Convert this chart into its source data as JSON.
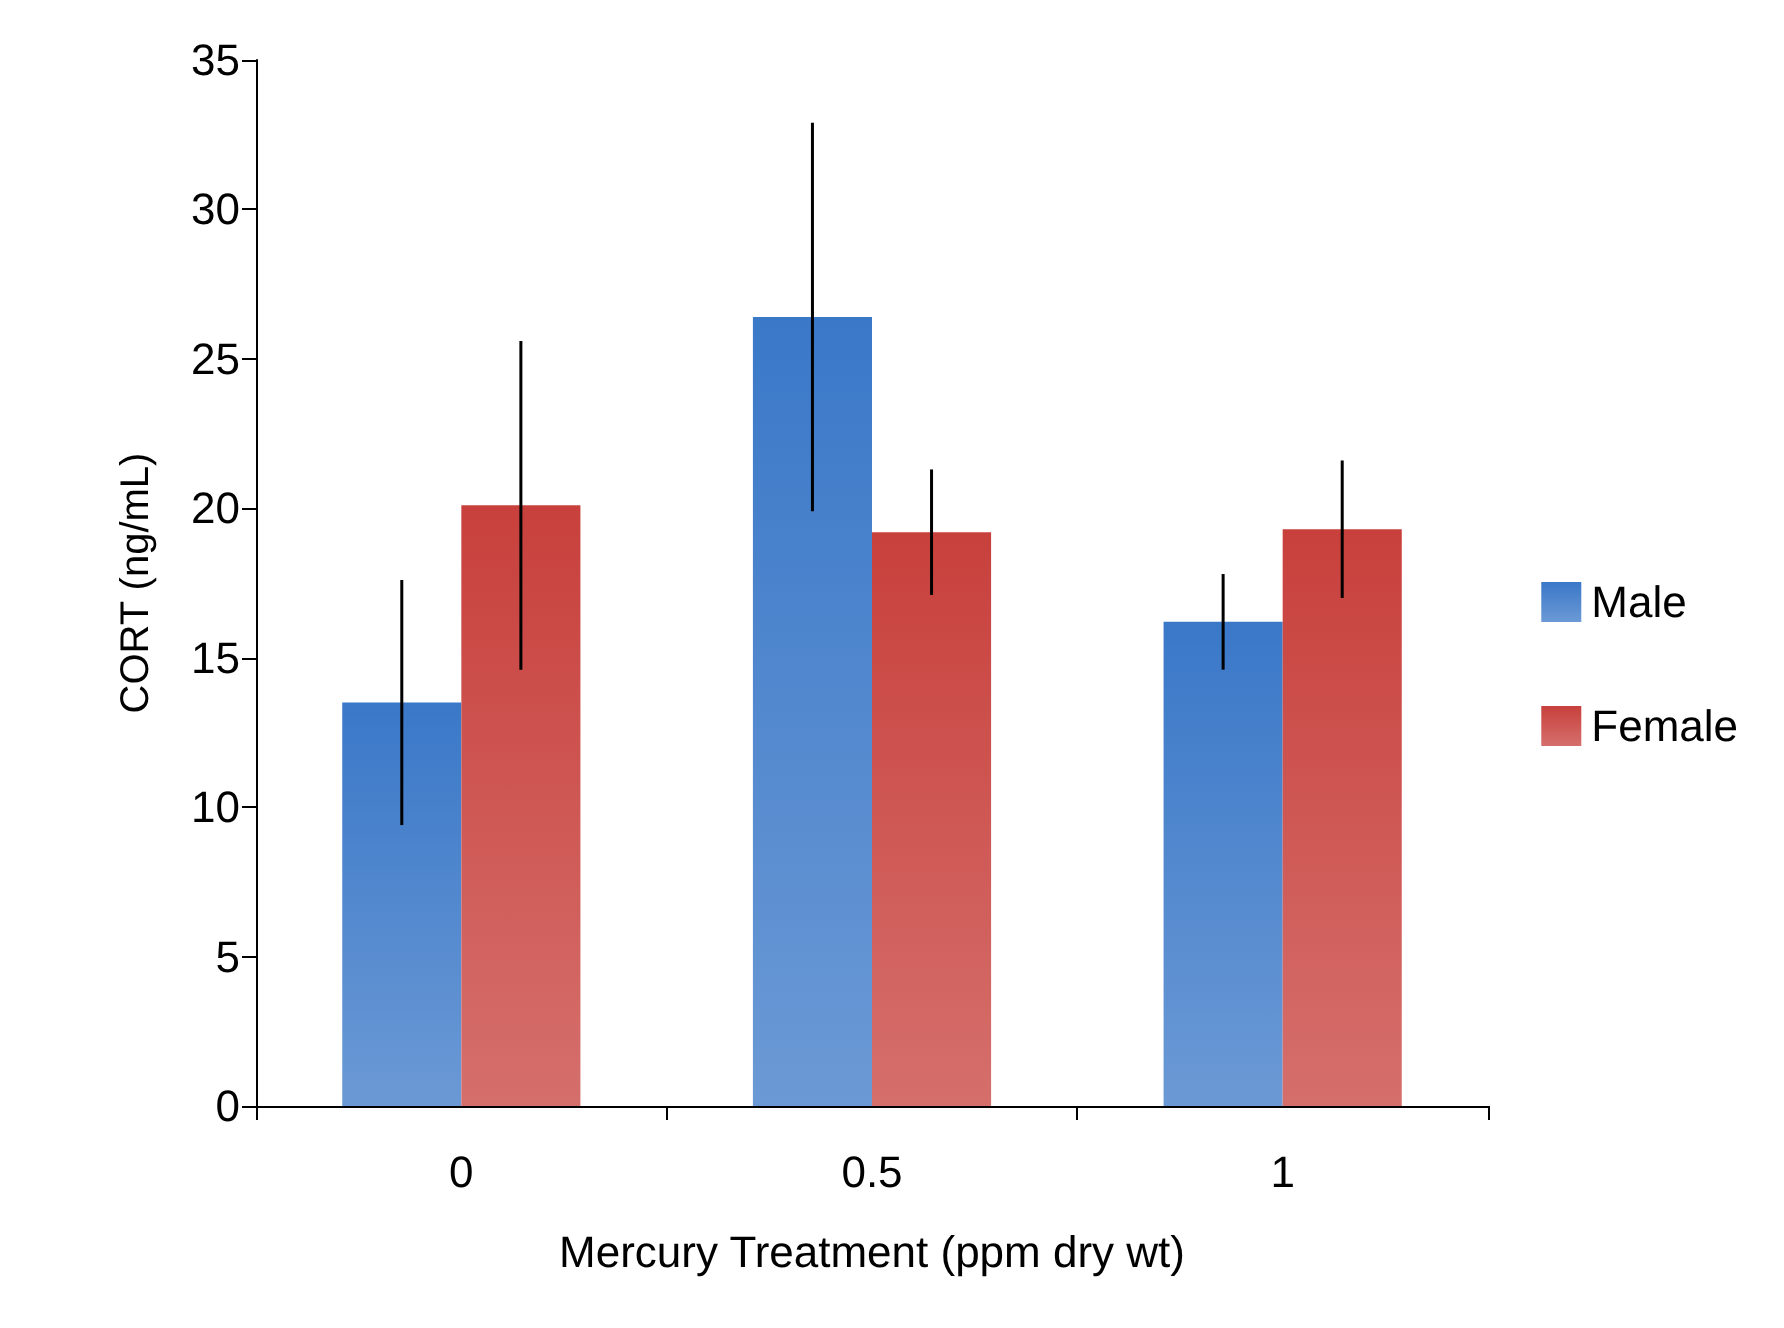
{
  "chart_data": {
    "type": "bar",
    "xlabel": "Mercury Treatment (ppm dry wt)",
    "ylabel": "CORT (ng/mL)",
    "categories": [
      "0",
      "0.5",
      "1"
    ],
    "series": [
      {
        "name": "Male",
        "color": "#3a78c8",
        "values": [
          13.5,
          26.4,
          16.2
        ],
        "errors": [
          4.1,
          6.5,
          1.6
        ]
      },
      {
        "name": "Female",
        "color": "#c8403c",
        "values": [
          20.1,
          19.2,
          19.3
        ],
        "errors": [
          5.5,
          2.1,
          2.3
        ]
      }
    ],
    "ylim": [
      0,
      35
    ],
    "yticks": [
      0,
      5,
      10,
      15,
      20,
      25,
      30,
      35
    ],
    "grid": false,
    "legend": "right"
  }
}
